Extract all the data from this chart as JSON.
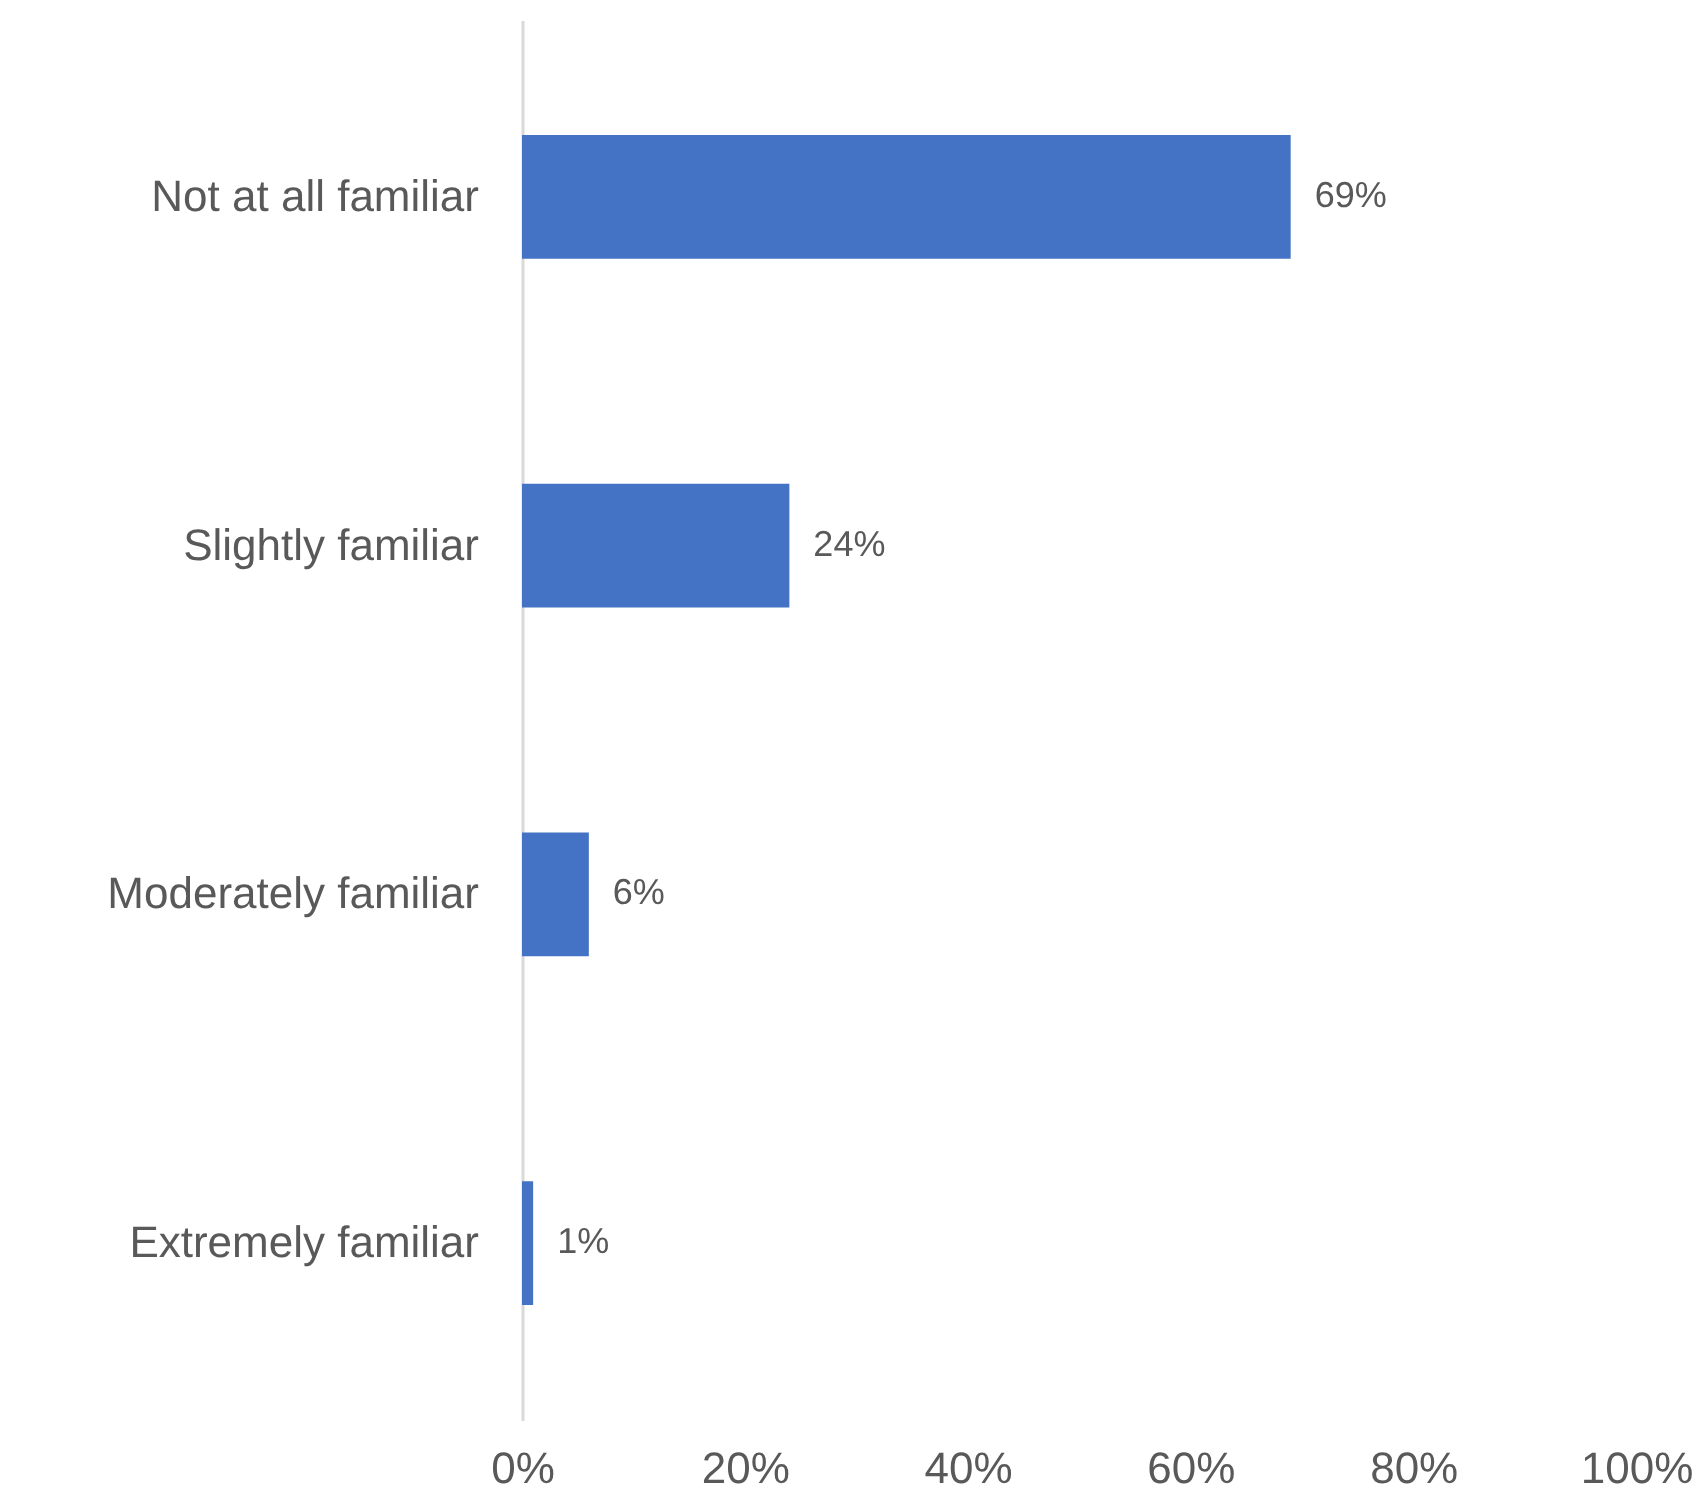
{
  "chart_data": {
    "type": "bar",
    "orientation": "horizontal",
    "categories": [
      "Not at all familiar",
      "Slightly familiar",
      "Moderately familiar",
      "Extremely familiar"
    ],
    "values": [
      69,
      24,
      6,
      1
    ],
    "value_labels": [
      "69%",
      "24%",
      "6%",
      "1%"
    ],
    "color": "#4472c4",
    "xlim": [
      0,
      100
    ],
    "xticks": [
      {
        "value": 0,
        "label": "0%"
      },
      {
        "value": 20,
        "label": "20%"
      },
      {
        "value": 40,
        "label": "40%"
      },
      {
        "value": 60,
        "label": "60%"
      },
      {
        "value": 80,
        "label": "80%"
      },
      {
        "value": 100,
        "label": "100%"
      }
    ]
  }
}
